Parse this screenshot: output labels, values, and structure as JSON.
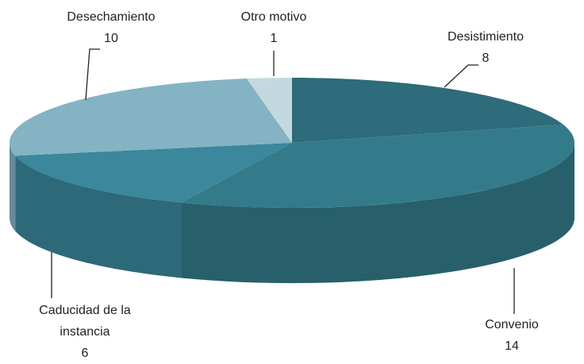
{
  "chart_data": {
    "type": "pie3d",
    "categories": [
      "Desistimiento",
      "Convenio",
      "Caducidad de la instancia",
      "Desechamiento",
      "Otro motivo"
    ],
    "values": [
      8,
      14,
      6,
      10,
      1
    ],
    "colors": [
      "#2e6b7b",
      "#337b8a",
      "#3b879c",
      "#84b3c3",
      "#c4d9df"
    ]
  }
}
